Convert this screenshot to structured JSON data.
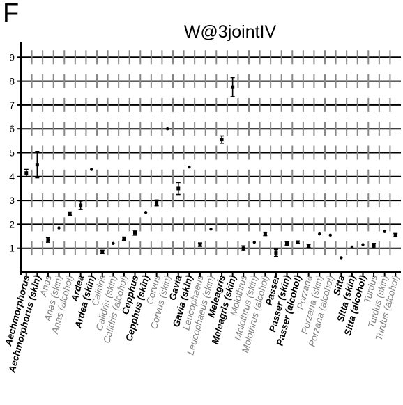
{
  "panel_label": "F",
  "chart_data": {
    "type": "scatter",
    "title": "W@3jointIV",
    "xlabel": "",
    "ylabel": "",
    "ylim": [
      0,
      9.5
    ],
    "yticks": [
      1,
      2,
      3,
      4,
      5,
      6,
      7,
      8,
      9
    ],
    "grid": true,
    "categories": [
      {
        "label": "Aechmorphorus",
        "color": "#000000",
        "style": "italic-bold",
        "y": 4.15,
        "err": 0.15
      },
      {
        "label": "Aechmorphorus (skin)",
        "color": "#000000",
        "style": "italic-bold",
        "y": 4.5,
        "err": 0.55
      },
      {
        "label": "Anas",
        "color": "#808080",
        "style": "italic",
        "y": 1.35,
        "err": 0.1
      },
      {
        "label": "Anas (skin)",
        "color": "#808080",
        "style": "italic",
        "y": 1.85,
        "err": 0
      },
      {
        "label": "Anas (alcohol)",
        "color": "#808080",
        "style": "italic",
        "y": 2.45,
        "err": 0.07
      },
      {
        "label": "Ardea",
        "color": "#000000",
        "style": "italic-bold",
        "y": 2.8,
        "err": 0.18
      },
      {
        "label": "Ardea (skin)",
        "color": "#000000",
        "style": "italic-bold",
        "y": 4.3,
        "err": 0
      },
      {
        "label": "Calidris",
        "color": "#808080",
        "style": "italic",
        "y": 0.85,
        "err": 0.07
      },
      {
        "label": "Calidris (skin)",
        "color": "#808080",
        "style": "italic",
        "y": 1.2,
        "err": 0
      },
      {
        "label": "Calidris (alcohol)",
        "color": "#808080",
        "style": "italic",
        "y": 1.4,
        "err": 0.07
      },
      {
        "label": "Cepphus",
        "color": "#000000",
        "style": "italic-bold",
        "y": 1.65,
        "err": 0.1
      },
      {
        "label": "Cepphus (skin)",
        "color": "#000000",
        "style": "italic-bold",
        "y": 2.5,
        "err": 0
      },
      {
        "label": "Corvus",
        "color": "#808080",
        "style": "italic",
        "y": 2.9,
        "err": 0.12
      },
      {
        "label": "Corvus (skin)",
        "color": "#808080",
        "style": "italic",
        "y": 6.0,
        "err": 0
      },
      {
        "label": "Gavia",
        "color": "#000000",
        "style": "italic-bold",
        "y": 3.5,
        "err": 0.25
      },
      {
        "label": "Gavia (skin)",
        "color": "#000000",
        "style": "italic-bold",
        "y": 4.4,
        "err": 0
      },
      {
        "label": "Leucophaeus",
        "color": "#808080",
        "style": "italic",
        "y": 1.15,
        "err": 0.07
      },
      {
        "label": "Leucophaeus (skin)",
        "color": "#808080",
        "style": "italic",
        "y": 1.8,
        "err": 0
      },
      {
        "label": "Meleagris",
        "color": "#000000",
        "style": "italic-bold",
        "y": 5.55,
        "err": 0.15
      },
      {
        "label": "Meleagris (skin)",
        "color": "#000000",
        "style": "italic-bold",
        "y": 7.75,
        "err": 0.4
      },
      {
        "label": "Molothrus",
        "color": "#808080",
        "style": "italic",
        "y": 1.0,
        "err": 0.1
      },
      {
        "label": "Molothrus (skin)",
        "color": "#808080",
        "style": "italic",
        "y": 1.25,
        "err": 0
      },
      {
        "label": "Molothrus (alcohol)",
        "color": "#808080",
        "style": "italic",
        "y": 1.6,
        "err": 0.07
      },
      {
        "label": "Passer",
        "color": "#000000",
        "style": "italic-bold",
        "y": 0.8,
        "err": 0.15
      },
      {
        "label": "Passer (skin)",
        "color": "#000000",
        "style": "italic-bold",
        "y": 1.2,
        "err": 0.07
      },
      {
        "label": "Passer (alcohol)",
        "color": "#000000",
        "style": "italic-bold",
        "y": 1.25,
        "err": 0.05
      },
      {
        "label": "Porzana",
        "color": "#808080",
        "style": "italic",
        "y": 1.1,
        "err": 0.07
      },
      {
        "label": "Porzana (skin)",
        "color": "#808080",
        "style": "italic",
        "y": 1.6,
        "err": 0
      },
      {
        "label": "Porzana (alcohol)",
        "color": "#808080",
        "style": "italic",
        "y": 1.55,
        "err": 0
      },
      {
        "label": "Sitta",
        "color": "#000000",
        "style": "italic-bold",
        "y": 0.6,
        "err": 0
      },
      {
        "label": "Sitta (skin)",
        "color": "#000000",
        "style": "italic-bold",
        "y": 1.05,
        "err": 0
      },
      {
        "label": "Sitta (alcohol)",
        "color": "#000000",
        "style": "italic-bold",
        "y": 1.15,
        "err": 0
      },
      {
        "label": "Turdus",
        "color": "#808080",
        "style": "italic",
        "y": 1.1,
        "err": 0.1
      },
      {
        "label": "Turdus (skin)",
        "color": "#808080",
        "style": "italic",
        "y": 1.7,
        "err": 0
      },
      {
        "label": "Turdus (alcohol)",
        "color": "#808080",
        "style": "italic",
        "y": 1.55,
        "err": 0.07
      }
    ]
  }
}
